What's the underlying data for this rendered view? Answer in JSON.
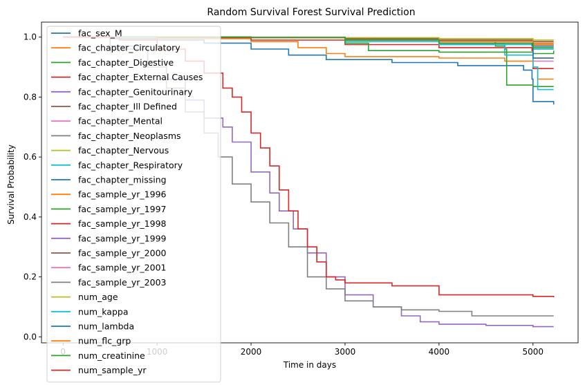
{
  "chart_data": {
    "type": "line",
    "title": "Random Survival Forest Survival Prediction",
    "xlabel": "Time in days",
    "ylabel": "Survival Probability",
    "xlim": [
      -230,
      5480
    ],
    "ylim": [
      -0.02,
      1.05
    ],
    "xticks": [
      0,
      1000,
      2000,
      3000,
      4000,
      5000
    ],
    "xtick_labels": [
      "0",
      "1000",
      "2000",
      "3000",
      "4000",
      "5000"
    ],
    "yticks": [
      0.0,
      0.2,
      0.4,
      0.6,
      0.8,
      1.0
    ],
    "ytick_labels": [
      "0.0",
      "0.2",
      "0.4",
      "0.6",
      "0.8",
      "1.0"
    ],
    "grid": false,
    "legend_position": "upper-left",
    "series": [
      {
        "name": "fac_sex_M",
        "color": "#1f77b4",
        "x": [
          0,
          500,
          1000,
          1500,
          2000,
          2400,
          2800,
          3500,
          4200,
          4900,
          4990,
          5000,
          5220
        ],
        "y": [
          1.0,
          0.995,
          0.99,
          0.98,
          0.96,
          0.94,
          0.925,
          0.915,
          0.905,
          0.89,
          0.86,
          0.785,
          0.775
        ]
      },
      {
        "name": "fac_chapter_Circulatory",
        "color": "#ff7f0e",
        "x": [
          0,
          1000,
          2000,
          2500,
          2800,
          3000,
          4000,
          4700,
          5000,
          5050,
          5220
        ],
        "y": [
          1.0,
          0.995,
          0.985,
          0.965,
          0.945,
          0.935,
          0.93,
          0.92,
          0.9,
          0.86,
          0.86
        ]
      },
      {
        "name": "fac_chapter_Digestive",
        "color": "#2ca02c",
        "x": [
          0,
          2000,
          3000,
          4000,
          4600,
          4700,
          4720,
          4900,
          5000,
          5220
        ],
        "y": [
          1.0,
          0.998,
          0.99,
          0.985,
          0.97,
          0.96,
          0.84,
          0.84,
          0.835,
          0.835
        ]
      },
      {
        "name": "fac_chapter_External Causes",
        "color": "#d62728",
        "x": [
          0,
          1000,
          2000,
          3000,
          4000,
          4990,
          5000,
          5220
        ],
        "y": [
          1.0,
          0.998,
          0.99,
          0.975,
          0.965,
          0.955,
          0.895,
          0.895
        ]
      },
      {
        "name": "fac_chapter_Genitourinary",
        "color": "#9467bd",
        "x": [
          0,
          2000,
          3000,
          4000,
          5000,
          5220
        ],
        "y": [
          1.0,
          0.998,
          0.99,
          0.985,
          0.975,
          0.975
        ]
      },
      {
        "name": "fac_chapter_Ill Defined",
        "color": "#8c564b",
        "x": [
          0,
          2000,
          3000,
          4000,
          5000,
          5220
        ],
        "y": [
          1.0,
          0.999,
          0.995,
          0.99,
          0.985,
          0.985
        ]
      },
      {
        "name": "fac_chapter_Mental",
        "color": "#e377c2",
        "x": [
          0,
          2000,
          3000,
          4000,
          4990,
          5000,
          5220
        ],
        "y": [
          1.0,
          0.998,
          0.99,
          0.98,
          0.97,
          0.92,
          0.92
        ]
      },
      {
        "name": "fac_chapter_Neoplasms",
        "color": "#7f7f7f",
        "x": [
          0,
          2000,
          3000,
          4000,
          5000,
          5220
        ],
        "y": [
          1.0,
          0.999,
          0.995,
          0.99,
          0.98,
          0.98
        ]
      },
      {
        "name": "fac_chapter_Nervous",
        "color": "#bcbd22",
        "x": [
          0,
          2000,
          3000,
          4000,
          5000,
          5220
        ],
        "y": [
          1.0,
          0.999,
          0.998,
          0.995,
          0.99,
          0.99
        ]
      },
      {
        "name": "fac_chapter_Respiratory",
        "color": "#17becf",
        "x": [
          0,
          2000,
          3000,
          4000,
          4700,
          5000,
          5050,
          5220
        ],
        "y": [
          1.0,
          0.998,
          0.985,
          0.975,
          0.94,
          0.9,
          0.825,
          0.825
        ]
      },
      {
        "name": "fac_chapter_missing",
        "color": "#1f77b4",
        "x": [
          0,
          2000,
          3000,
          4000,
          5000,
          5220
        ],
        "y": [
          1.0,
          0.998,
          0.99,
          0.985,
          0.97,
          0.97
        ]
      },
      {
        "name": "fac_sample_yr_1996",
        "color": "#ff7f0e",
        "x": [
          0,
          2000,
          3000,
          4000,
          5000,
          5220
        ],
        "y": [
          1.0,
          0.998,
          0.99,
          0.985,
          0.98,
          0.98
        ]
      },
      {
        "name": "fac_sample_yr_1997",
        "color": "#2ca02c",
        "x": [
          0,
          2000,
          3000,
          3250,
          4000,
          5000,
          5220
        ],
        "y": [
          1.0,
          0.998,
          0.98,
          0.955,
          0.95,
          0.945,
          0.955
        ]
      },
      {
        "name": "fac_sample_yr_1998",
        "color": "#d62728",
        "x": [
          0,
          2000,
          3000,
          4000,
          5000,
          5220
        ],
        "y": [
          1.0,
          0.998,
          0.99,
          0.98,
          0.93,
          0.93
        ]
      },
      {
        "name": "fac_sample_yr_1999",
        "color": "#9467bd",
        "x": [
          0,
          500,
          900,
          1100,
          1300,
          1500,
          1700,
          1800,
          2000,
          2200,
          2300,
          2450,
          2600,
          2800,
          3000,
          3300,
          3600,
          3800,
          4000,
          4500,
          5000,
          5220
        ],
        "y": [
          1.0,
          0.97,
          0.92,
          0.86,
          0.79,
          0.73,
          0.7,
          0.65,
          0.55,
          0.48,
          0.42,
          0.36,
          0.28,
          0.2,
          0.14,
          0.1,
          0.07,
          0.05,
          0.042,
          0.038,
          0.034,
          0.034
        ]
      },
      {
        "name": "fac_sample_yr_2000",
        "color": "#8c564b",
        "x": [
          0,
          2000,
          3000,
          4000,
          5000,
          5220
        ],
        "y": [
          1.0,
          0.999,
          0.995,
          0.99,
          0.975,
          0.975
        ]
      },
      {
        "name": "fac_sample_yr_2001",
        "color": "#e377c2",
        "x": [
          0,
          2000,
          3000,
          4000,
          5000,
          5220
        ],
        "y": [
          1.0,
          0.998,
          0.99,
          0.98,
          0.96,
          0.96
        ]
      },
      {
        "name": "fac_sample_yr_2003",
        "color": "#7f7f7f",
        "x": [
          0,
          500,
          900,
          1100,
          1300,
          1500,
          1650,
          1800,
          2000,
          2200,
          2400,
          2600,
          2800,
          3000,
          3300,
          3600,
          4000,
          4350,
          5220
        ],
        "y": [
          1.0,
          0.96,
          0.9,
          0.83,
          0.75,
          0.68,
          0.6,
          0.51,
          0.45,
          0.38,
          0.3,
          0.2,
          0.16,
          0.12,
          0.1,
          0.09,
          0.085,
          0.07,
          0.07
        ]
      },
      {
        "name": "num_age",
        "color": "#bcbd22",
        "x": [
          0,
          2000,
          3000,
          4000,
          5000,
          5220
        ],
        "y": [
          1.0,
          0.999,
          0.998,
          0.995,
          0.99,
          0.99
        ]
      },
      {
        "name": "num_kappa",
        "color": "#17becf",
        "x": [
          0,
          2000,
          3000,
          4000,
          5000,
          5220
        ],
        "y": [
          1.0,
          0.998,
          0.99,
          0.975,
          0.96,
          0.96
        ]
      },
      {
        "name": "num_lambda",
        "color": "#1f77b4",
        "x": [
          0,
          2000,
          3000,
          4000,
          4990,
          5000,
          5220
        ],
        "y": [
          1.0,
          0.998,
          0.99,
          0.98,
          0.97,
          0.93,
          0.93
        ]
      },
      {
        "name": "num_flc_grp",
        "color": "#ff7f0e",
        "x": [
          0,
          2000,
          3000,
          4000,
          5000,
          5220
        ],
        "y": [
          1.0,
          0.998,
          0.99,
          0.985,
          0.975,
          0.975
        ]
      },
      {
        "name": "num_creatinine",
        "color": "#2ca02c",
        "x": [
          0,
          2000,
          3000,
          4000,
          5000,
          5220
        ],
        "y": [
          1.0,
          0.999,
          0.99,
          0.98,
          0.965,
          0.965
        ]
      },
      {
        "name": "num_sample_yr",
        "color": "#d62728",
        "x": [
          0,
          600,
          1000,
          1300,
          1500,
          1700,
          1800,
          1900,
          2000,
          2100,
          2200,
          2300,
          2400,
          2500,
          2600,
          2700,
          2800,
          2900,
          3000,
          3500,
          4000,
          5000,
          5220
        ],
        "y": [
          1.0,
          0.99,
          0.96,
          0.92,
          0.88,
          0.83,
          0.8,
          0.75,
          0.68,
          0.63,
          0.57,
          0.49,
          0.42,
          0.36,
          0.3,
          0.25,
          0.2,
          0.19,
          0.18,
          0.17,
          0.14,
          0.135,
          0.132
        ]
      }
    ]
  }
}
